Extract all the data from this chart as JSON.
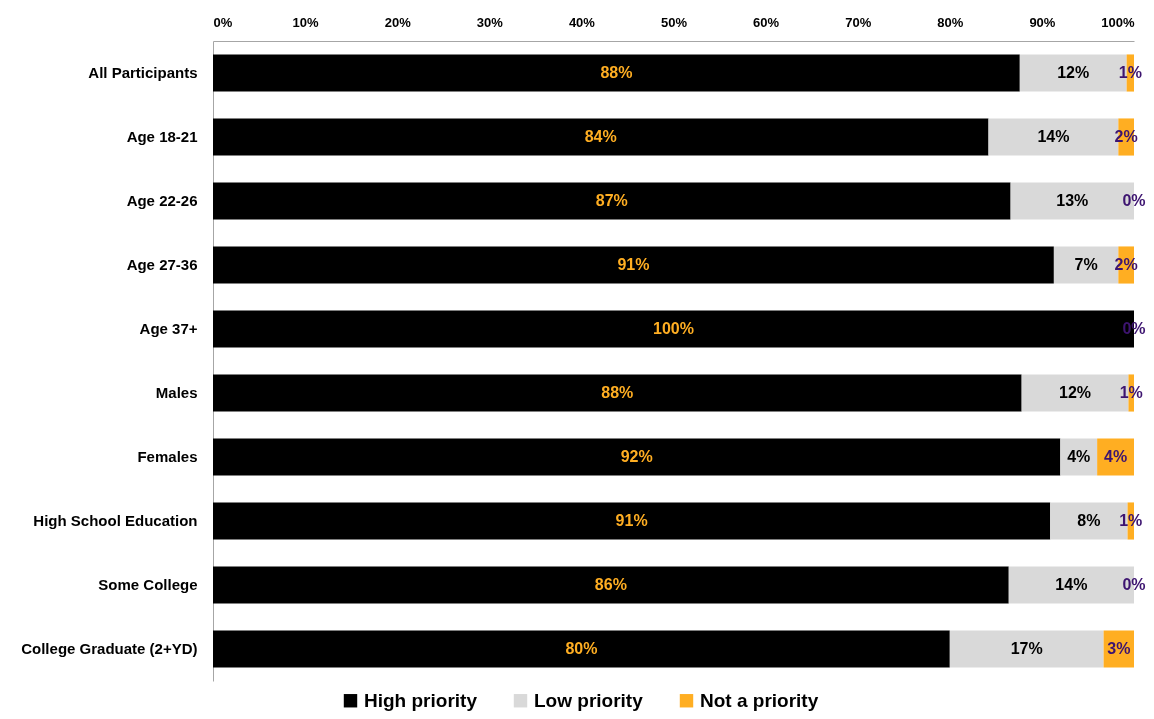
{
  "chart_data": {
    "type": "bar",
    "orientation": "horizontal",
    "stacked": true,
    "categories": [
      "All Participants",
      "Age 18-21",
      "Age 22-26",
      "Age 27-36",
      "Age 37+",
      "Males",
      "Females",
      "High School Education",
      "Some College",
      "College Graduate (2+YD)"
    ],
    "series": [
      {
        "name": "High priority",
        "color": "#000000",
        "values": [
          87.6,
          84.2,
          86.6,
          91.3,
          100,
          87.8,
          92.0,
          90.9,
          86.4,
          80.0
        ],
        "value_labels": [
          "88%",
          "84%",
          "87%",
          "91%",
          "100%",
          "88%",
          "92%",
          "91%",
          "86%",
          "80%"
        ]
      },
      {
        "name": "Low priority",
        "color": "#d9d9d9",
        "values": [
          11.6,
          14.1,
          13.4,
          7.0,
          0,
          11.6,
          4.0,
          8.4,
          13.6,
          16.7
        ],
        "value_labels": [
          "12%",
          "14%",
          "13%",
          "7%",
          null,
          "12%",
          "4%",
          "8%",
          "14%",
          "17%"
        ]
      },
      {
        "name": "Not a priority",
        "color": "#ffae22",
        "values": [
          0.8,
          1.7,
          0,
          1.7,
          0,
          0.6,
          4.0,
          0.7,
          0,
          3.3
        ],
        "value_labels": [
          "1%",
          "2%",
          "0%",
          "2%",
          "0%",
          "1%",
          "4%",
          "1%",
          "0%",
          "3%"
        ]
      }
    ],
    "xlim": [
      0,
      100
    ],
    "xticks": [
      {
        "value": 0,
        "label": "0%"
      },
      {
        "value": 10,
        "label": "10%"
      },
      {
        "value": 20,
        "label": "20%"
      },
      {
        "value": 30,
        "label": "30%"
      },
      {
        "value": 40,
        "label": "40%"
      },
      {
        "value": 50,
        "label": "50%"
      },
      {
        "value": 60,
        "label": "60%"
      },
      {
        "value": 70,
        "label": "70%"
      },
      {
        "value": 80,
        "label": "80%"
      },
      {
        "value": 90,
        "label": "90%"
      },
      {
        "value": 100,
        "label": "100%"
      }
    ],
    "grid": false,
    "legend": "bottom"
  }
}
